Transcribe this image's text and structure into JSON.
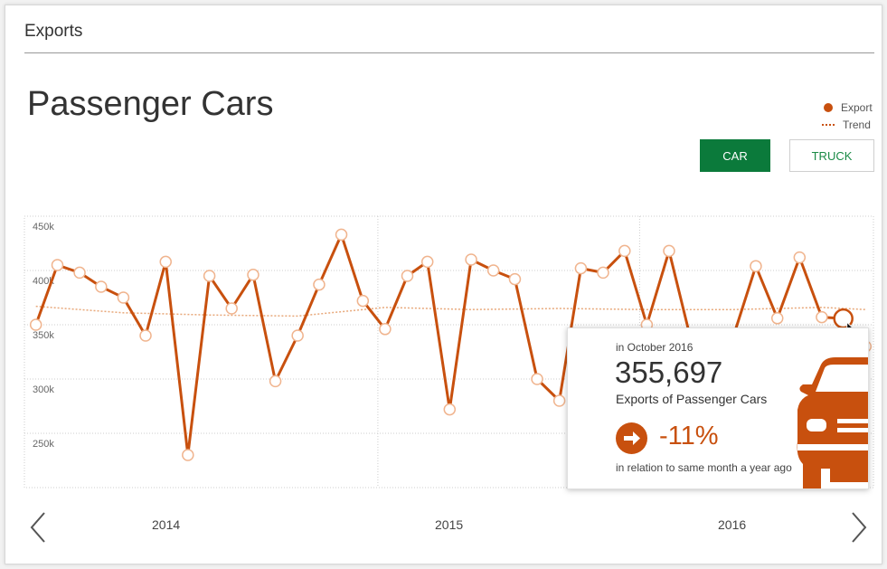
{
  "header": {
    "section_title": "Exports"
  },
  "page_title": "Passenger Cars",
  "legend": {
    "export": "Export",
    "trend": "Trend"
  },
  "toggle": {
    "car_label": "CAR",
    "truck_label": "TRUCK"
  },
  "colors": {
    "accent": "#c8500e",
    "brand_green": "#0b7a3b",
    "trend": "#e8a87a"
  },
  "chart_data": {
    "type": "line",
    "y_tick_labels": [
      "450k",
      "400k",
      "350k",
      "300k",
      "250k"
    ],
    "ylim": [
      200000,
      450000
    ],
    "x_tick_labels": [
      "2014",
      "2015",
      "2016"
    ],
    "grid": true,
    "legend_position": "top-right",
    "series": [
      {
        "name": "Export",
        "x": [
          "2013-09",
          "2013-10",
          "2013-11",
          "2013-12",
          "2014-01",
          "2014-02",
          "2014-03",
          "2014-04",
          "2014-05",
          "2014-06",
          "2014-07",
          "2014-08",
          "2014-09",
          "2014-10",
          "2014-11",
          "2014-12",
          "2015-01",
          "2015-02",
          "2015-03",
          "2015-04",
          "2015-05",
          "2015-06",
          "2015-07",
          "2015-08",
          "2015-09",
          "2015-10",
          "2015-11",
          "2015-12",
          "2016-01",
          "2016-02",
          "2016-03",
          "2016-04",
          "2016-05",
          "2016-06",
          "2016-07",
          "2016-08",
          "2016-09",
          "2016-10",
          "2016-11"
        ],
        "values": [
          350000,
          405000,
          398000,
          385000,
          375000,
          340000,
          408000,
          230000,
          395000,
          365000,
          396000,
          298000,
          340000,
          387000,
          433000,
          372000,
          346000,
          395000,
          408000,
          272000,
          410000,
          400000,
          392000,
          300000,
          280000,
          402000,
          398000,
          418000,
          350000,
          418000,
          340000,
          300000,
          340000,
          404000,
          356000,
          412000,
          357000,
          355697,
          330000
        ]
      },
      {
        "name": "Trend",
        "x": [
          "2013-09",
          "2014-01",
          "2014-05",
          "2014-09",
          "2015-01",
          "2015-05",
          "2015-09",
          "2016-01",
          "2016-05",
          "2016-09",
          "2016-11"
        ],
        "values": [
          367000,
          361000,
          359000,
          358000,
          366000,
          364000,
          365000,
          364000,
          364000,
          366000,
          364000
        ]
      }
    ]
  },
  "tooltip": {
    "date": "in October 2016",
    "value": "355,697",
    "caption": "Exports of Passenger Cars",
    "change": "-11%",
    "note": "in relation to same month a year ago"
  },
  "nav": {
    "prev": "chevron-left-icon",
    "next": "chevron-right-icon"
  }
}
